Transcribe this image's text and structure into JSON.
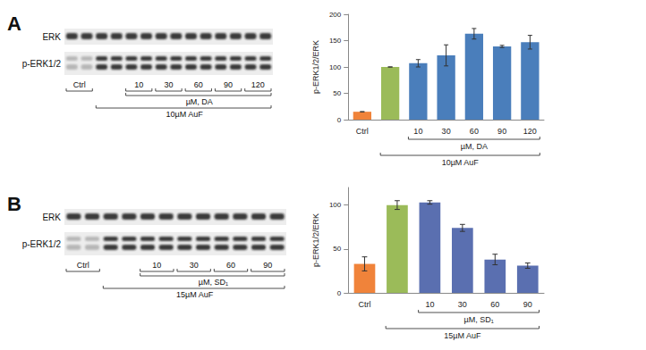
{
  "figure": {
    "panels": [
      {
        "letter": "A",
        "blot": {
          "rows": [
            "ERK",
            "p-ERK1/2"
          ],
          "control": "Ctrl",
          "doses": [
            "10",
            "30",
            "60",
            "90",
            "120"
          ],
          "dose_label": "µM, DA",
          "treatment": "10µM AuF"
        }
      },
      {
        "letter": "B",
        "blot": {
          "rows": [
            "ERK",
            "p-ERK1/2"
          ],
          "control": "Ctrl",
          "doses": [
            "10",
            "30",
            "60",
            "90"
          ],
          "dose_label": "µM, SD₁",
          "treatment": "15µM AuF"
        }
      }
    ]
  },
  "chart_data": [
    {
      "type": "bar",
      "y_label": "p-ERK1/2/ERK",
      "categories": [
        "Ctrl",
        null,
        "10",
        "30",
        "60",
        "90",
        "120"
      ],
      "values": [
        15,
        100,
        107,
        122,
        163,
        139,
        147
      ],
      "errors": [
        0,
        0,
        7,
        20,
        10,
        2,
        13
      ],
      "colors": [
        "#f0833a",
        "#9bbb59",
        "#4a7ebb",
        "#4a7ebb",
        "#4a7ebb",
        "#4a7ebb",
        "#4a7ebb"
      ],
      "ylim": [
        0,
        200
      ],
      "yticks": [
        0,
        50,
        100,
        150,
        200
      ],
      "grid": false,
      "annotations": [
        "µM, DA",
        "10µM AuF"
      ]
    },
    {
      "type": "bar",
      "y_label": "p-ERK1/2/ERK",
      "categories": [
        "Ctrl",
        null,
        "10",
        "30",
        "60",
        "90"
      ],
      "values": [
        33,
        100,
        103,
        74,
        38,
        31
      ],
      "errors": [
        8,
        5,
        2,
        4,
        6,
        3
      ],
      "colors": [
        "#f0833a",
        "#9bbb59",
        "#5a6fb0",
        "#5a6fb0",
        "#5a6fb0",
        "#5a6fb0"
      ],
      "ylim": [
        0,
        120
      ],
      "yticks": [
        0,
        50,
        100
      ],
      "grid": false,
      "annotations": [
        "µM, SD₁",
        "15µM AuF"
      ]
    }
  ]
}
